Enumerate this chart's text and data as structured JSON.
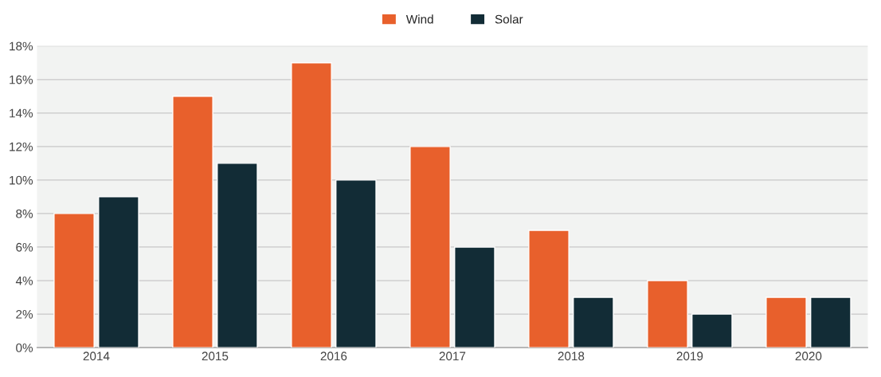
{
  "chart_data": {
    "type": "bar",
    "categories": [
      "2014",
      "2015",
      "2016",
      "2017",
      "2018",
      "2019",
      "2020"
    ],
    "series": [
      {
        "name": "Wind",
        "color": "#e8602c",
        "values": [
          8,
          15,
          17,
          12,
          7,
          4,
          3
        ]
      },
      {
        "name": "Solar",
        "color": "#122c36",
        "values": [
          9,
          11,
          10,
          6,
          3,
          2,
          3
        ]
      }
    ],
    "ylim": [
      0,
      18
    ],
    "yticks": [
      {
        "value": 0,
        "label": "0%"
      },
      {
        "value": 2,
        "label": "2%"
      },
      {
        "value": 4,
        "label": "4%"
      },
      {
        "value": 6,
        "label": "6%"
      },
      {
        "value": 8,
        "label": "8%"
      },
      {
        "value": 10,
        "label": "10%"
      },
      {
        "value": 12,
        "label": "12%"
      },
      {
        "value": 14,
        "label": "14%"
      },
      {
        "value": 16,
        "label": "16%"
      },
      {
        "value": 18,
        "label": "18%"
      }
    ],
    "grid": "y",
    "legend": "top"
  }
}
